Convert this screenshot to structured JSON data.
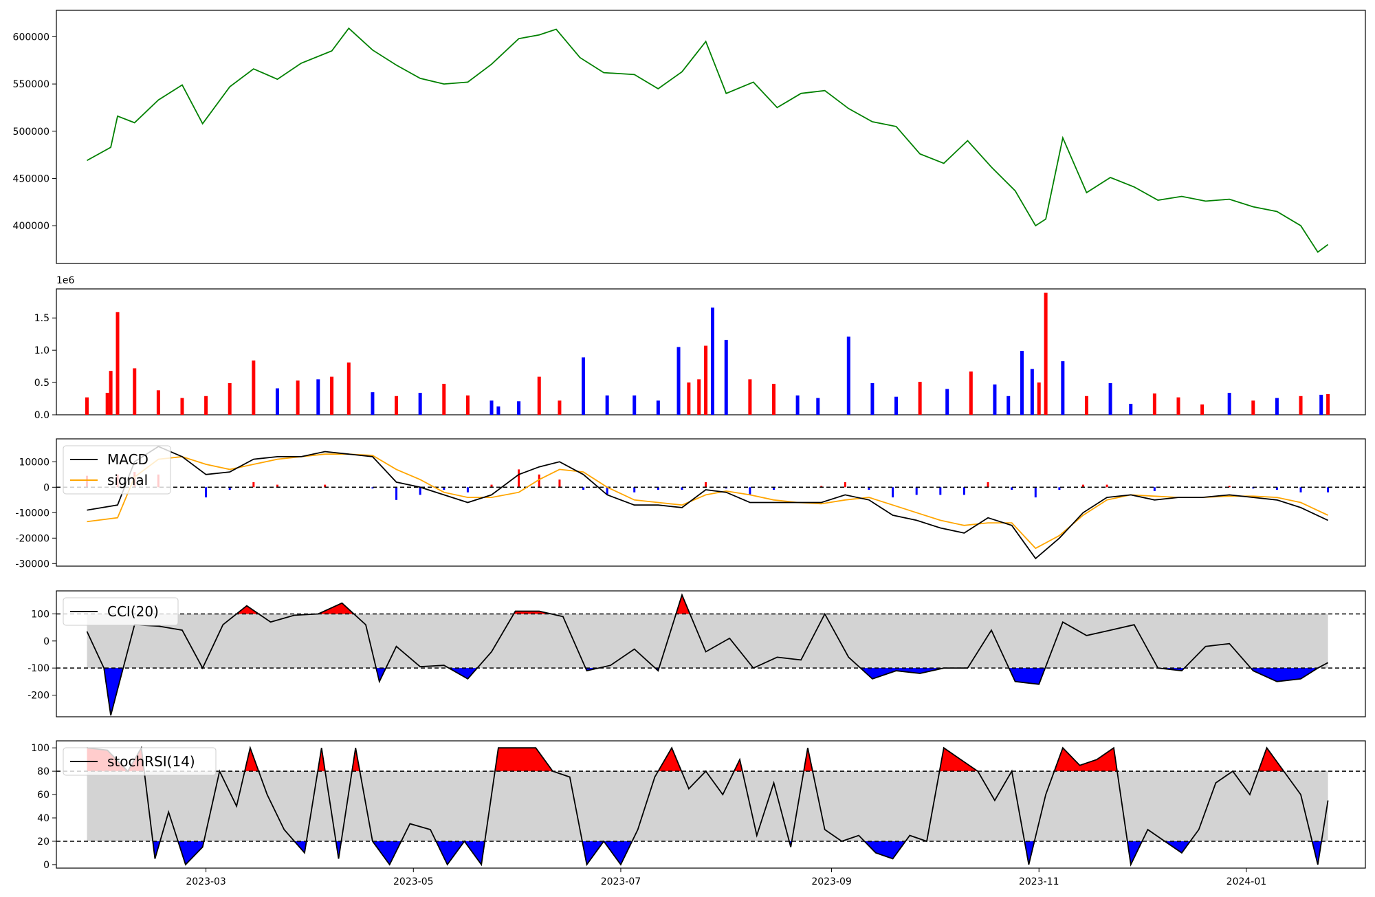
{
  "chart_data": [
    {
      "type": "line",
      "panel": "price",
      "title": "",
      "ylim": [
        360000,
        628000
      ],
      "yticks": [
        400000,
        450000,
        500000,
        550000,
        600000
      ],
      "colors": {
        "line": "#008000"
      },
      "x": [
        "2023-01-25",
        "2023-02-01",
        "2023-02-03",
        "2023-02-08",
        "2023-02-15",
        "2023-02-22",
        "2023-02-28",
        "2023-03-08",
        "2023-03-15",
        "2023-03-22",
        "2023-03-29",
        "2023-04-07",
        "2023-04-12",
        "2023-04-19",
        "2023-04-26",
        "2023-05-03",
        "2023-05-10",
        "2023-05-17",
        "2023-05-24",
        "2023-06-01",
        "2023-06-07",
        "2023-06-12",
        "2023-06-19",
        "2023-06-26",
        "2023-07-05",
        "2023-07-12",
        "2023-07-19",
        "2023-07-26",
        "2023-08-01",
        "2023-08-09",
        "2023-08-16",
        "2023-08-23",
        "2023-08-30",
        "2023-09-06",
        "2023-09-13",
        "2023-09-20",
        "2023-09-27",
        "2023-10-04",
        "2023-10-11",
        "2023-10-18",
        "2023-10-25",
        "2023-10-31",
        "2023-11-03",
        "2023-11-08",
        "2023-11-15",
        "2023-11-22",
        "2023-11-29",
        "2023-12-06",
        "2023-12-13",
        "2023-12-20",
        "2023-12-27",
        "2024-01-03",
        "2024-01-10",
        "2024-01-17",
        "2024-01-22",
        "2024-01-25"
      ],
      "values": [
        469000,
        483000,
        516000,
        509000,
        533000,
        549000,
        508000,
        547000,
        566000,
        555000,
        572000,
        585000,
        609000,
        586000,
        570000,
        556000,
        550000,
        552000,
        571000,
        598000,
        602000,
        608000,
        578000,
        562000,
        560000,
        545000,
        563000,
        595000,
        540000,
        552000,
        525000,
        540000,
        543000,
        524000,
        510000,
        505000,
        476000,
        466000,
        490000,
        462000,
        437000,
        400000,
        407000,
        493000,
        435000,
        451000,
        441000,
        427000,
        431000,
        426000,
        428000,
        420000,
        415000,
        400000,
        372000,
        380000
      ]
    },
    {
      "type": "bar",
      "panel": "volume",
      "scale_label": "1e6",
      "ylim": [
        0,
        1.95
      ],
      "yticks": [
        0.0,
        0.5,
        1.0,
        1.5
      ],
      "colors": {
        "up": "#ff0000",
        "down": "#0000ff"
      },
      "x": [
        "2023-01-25",
        "2023-01-31",
        "2023-02-01",
        "2023-02-03",
        "2023-02-08",
        "2023-02-15",
        "2023-02-22",
        "2023-03-01",
        "2023-03-08",
        "2023-03-15",
        "2023-03-22",
        "2023-03-28",
        "2023-04-03",
        "2023-04-07",
        "2023-04-12",
        "2023-04-19",
        "2023-04-26",
        "2023-05-03",
        "2023-05-10",
        "2023-05-17",
        "2023-05-24",
        "2023-05-26",
        "2023-06-01",
        "2023-06-07",
        "2023-06-13",
        "2023-06-20",
        "2023-06-27",
        "2023-07-05",
        "2023-07-12",
        "2023-07-18",
        "2023-07-21",
        "2023-07-24",
        "2023-07-26",
        "2023-07-28",
        "2023-08-01",
        "2023-08-08",
        "2023-08-15",
        "2023-08-22",
        "2023-08-28",
        "2023-09-06",
        "2023-09-13",
        "2023-09-20",
        "2023-09-27",
        "2023-10-05",
        "2023-10-12",
        "2023-10-19",
        "2023-10-23",
        "2023-10-27",
        "2023-10-30",
        "2023-11-01",
        "2023-11-03",
        "2023-11-08",
        "2023-11-15",
        "2023-11-22",
        "2023-11-28",
        "2023-12-05",
        "2023-12-12",
        "2023-12-19",
        "2023-12-27",
        "2024-01-03",
        "2024-01-10",
        "2024-01-17",
        "2024-01-23",
        "2024-01-25"
      ],
      "values": [
        0.27,
        0.34,
        0.68,
        1.59,
        0.72,
        0.38,
        0.26,
        0.29,
        0.49,
        0.84,
        0.41,
        0.53,
        0.55,
        0.59,
        0.81,
        0.35,
        0.29,
        0.34,
        0.48,
        0.3,
        0.22,
        0.13,
        0.21,
        0.59,
        0.22,
        0.89,
        0.3,
        0.3,
        0.22,
        1.05,
        0.5,
        0.55,
        1.07,
        1.66,
        1.16,
        0.55,
        0.48,
        0.3,
        0.26,
        1.21,
        0.49,
        0.28,
        0.51,
        0.4,
        0.67,
        0.47,
        0.29,
        0.99,
        0.71,
        0.5,
        1.89,
        0.83,
        0.29,
        0.49,
        0.17,
        0.33,
        0.27,
        0.16,
        0.34,
        0.22,
        0.26,
        0.29,
        0.31,
        0.32
      ],
      "up": [
        true,
        true,
        true,
        true,
        true,
        true,
        true,
        true,
        true,
        true,
        false,
        true,
        false,
        true,
        true,
        false,
        true,
        false,
        true,
        true,
        false,
        false,
        false,
        true,
        true,
        false,
        false,
        false,
        false,
        false,
        true,
        true,
        true,
        false,
        false,
        true,
        true,
        false,
        false,
        false,
        false,
        false,
        true,
        false,
        true,
        false,
        false,
        false,
        false,
        true,
        true,
        false,
        true,
        false,
        false,
        true,
        true,
        true,
        false,
        true,
        false,
        true,
        false,
        true
      ]
    },
    {
      "type": "line",
      "panel": "macd",
      "ylim": [
        -31000,
        19000
      ],
      "yticks": [
        -30000,
        -20000,
        -10000,
        0,
        10000
      ],
      "legend": {
        "loc": "upper-left",
        "entries": [
          "MACD",
          "signal"
        ]
      },
      "colors": {
        "macd": "#000000",
        "signal": "#ffa500",
        "hist_pos": "#ff0000",
        "hist_neg": "#0000ff",
        "zero": "#000000"
      },
      "x": [
        "2023-01-25",
        "2023-02-03",
        "2023-02-08",
        "2023-02-15",
        "2023-02-22",
        "2023-03-01",
        "2023-03-08",
        "2023-03-15",
        "2023-03-22",
        "2023-03-29",
        "2023-04-05",
        "2023-04-12",
        "2023-04-19",
        "2023-04-26",
        "2023-05-03",
        "2023-05-10",
        "2023-05-17",
        "2023-05-24",
        "2023-06-01",
        "2023-06-07",
        "2023-06-13",
        "2023-06-20",
        "2023-06-27",
        "2023-07-05",
        "2023-07-12",
        "2023-07-19",
        "2023-07-26",
        "2023-08-01",
        "2023-08-08",
        "2023-08-15",
        "2023-08-22",
        "2023-08-29",
        "2023-09-05",
        "2023-09-12",
        "2023-09-19",
        "2023-09-26",
        "2023-10-03",
        "2023-10-10",
        "2023-10-17",
        "2023-10-24",
        "2023-10-31",
        "2023-11-07",
        "2023-11-14",
        "2023-11-21",
        "2023-11-28",
        "2023-12-05",
        "2023-12-12",
        "2023-12-19",
        "2023-12-27",
        "2024-01-03",
        "2024-01-10",
        "2024-01-17",
        "2024-01-25"
      ],
      "macd": [
        -9000,
        -7000,
        10000,
        16000,
        12000,
        5000,
        6000,
        11000,
        12000,
        12000,
        14000,
        13000,
        12000,
        2000,
        0,
        -3000,
        -6000,
        -3000,
        5000,
        8000,
        10000,
        5000,
        -3000,
        -7000,
        -7000,
        -8000,
        -1000,
        -2000,
        -6000,
        -6000,
        -6000,
        -6000,
        -3000,
        -5000,
        -11000,
        -13000,
        -16000,
        -18000,
        -12000,
        -15000,
        -28000,
        -20000,
        -10000,
        -4000,
        -3000,
        -5000,
        -4000,
        -4000,
        -3000,
        -4000,
        -5000,
        -8000,
        -13000
      ],
      "signal": [
        -13500,
        -12000,
        4000,
        11000,
        12000,
        9000,
        7000,
        9000,
        11000,
        12000,
        13000,
        13000,
        12500,
        7000,
        3000,
        -2000,
        -4000,
        -4000,
        -2000,
        3000,
        7000,
        6000,
        0,
        -5000,
        -6000,
        -7000,
        -3000,
        -1500,
        -3000,
        -5000,
        -6000,
        -6500,
        -5000,
        -4000,
        -7000,
        -10000,
        -13000,
        -15000,
        -14000,
        -14000,
        -24000,
        -19000,
        -11000,
        -5000,
        -3000,
        -3500,
        -4000,
        -4000,
        -3500,
        -3500,
        -4000,
        -6000,
        -11000
      ]
    },
    {
      "type": "line",
      "panel": "cci",
      "ylim": [
        -280,
        185
      ],
      "yticks": [
        -200,
        -100,
        0,
        100
      ],
      "thresholds": [
        100,
        -100
      ],
      "legend": {
        "loc": "upper-left",
        "entries": [
          "CCI(20)"
        ]
      },
      "colors": {
        "line": "#000000",
        "above": "#ff0000",
        "below": "#0000ff",
        "band": "#d3d3d3"
      },
      "x": [
        "2023-01-25",
        "2023-01-30",
        "2023-02-01",
        "2023-02-08",
        "2023-02-15",
        "2023-02-22",
        "2023-02-28",
        "2023-03-06",
        "2023-03-13",
        "2023-03-20",
        "2023-03-27",
        "2023-04-03",
        "2023-04-10",
        "2023-04-17",
        "2023-04-21",
        "2023-04-26",
        "2023-05-03",
        "2023-05-10",
        "2023-05-17",
        "2023-05-24",
        "2023-05-31",
        "2023-06-07",
        "2023-06-14",
        "2023-06-21",
        "2023-06-28",
        "2023-07-05",
        "2023-07-12",
        "2023-07-19",
        "2023-07-26",
        "2023-08-02",
        "2023-08-09",
        "2023-08-16",
        "2023-08-23",
        "2023-08-30",
        "2023-09-06",
        "2023-09-13",
        "2023-09-20",
        "2023-09-27",
        "2023-10-04",
        "2023-10-11",
        "2023-10-18",
        "2023-10-25",
        "2023-11-01",
        "2023-11-08",
        "2023-11-15",
        "2023-11-22",
        "2023-11-29",
        "2023-12-06",
        "2023-12-13",
        "2023-12-20",
        "2023-12-27",
        "2024-01-03",
        "2024-01-10",
        "2024-01-17",
        "2024-01-22",
        "2024-01-25"
      ],
      "values": [
        35,
        -100,
        -275,
        60,
        55,
        40,
        -100,
        60,
        130,
        70,
        95,
        100,
        140,
        60,
        -150,
        -20,
        -95,
        -90,
        -140,
        -40,
        110,
        110,
        90,
        -110,
        -90,
        -30,
        -110,
        170,
        -40,
        10,
        -100,
        -60,
        -70,
        100,
        -60,
        -140,
        -110,
        -120,
        -100,
        -100,
        40,
        -150,
        -160,
        70,
        20,
        40,
        60,
        -100,
        -110,
        -20,
        -10,
        -110,
        -150,
        -140,
        -100,
        -80
      ]
    },
    {
      "type": "line",
      "panel": "stochrsi",
      "ylim": [
        -3,
        106
      ],
      "yticks": [
        0,
        20,
        40,
        60,
        80,
        100
      ],
      "thresholds": [
        80,
        20
      ],
      "legend": {
        "loc": "upper-left",
        "entries": [
          "stochRSI(14)"
        ]
      },
      "colors": {
        "line": "#000000",
        "above": "#ff0000",
        "below": "#0000ff",
        "band": "#d3d3d3"
      },
      "x": [
        "2023-01-25",
        "2023-01-31",
        "2023-02-06",
        "2023-02-10",
        "2023-02-14",
        "2023-02-18",
        "2023-02-23",
        "2023-02-28",
        "2023-03-05",
        "2023-03-10",
        "2023-03-14",
        "2023-03-19",
        "2023-03-24",
        "2023-03-30",
        "2023-04-04",
        "2023-04-09",
        "2023-04-14",
        "2023-04-19",
        "2023-04-24",
        "2023-04-30",
        "2023-05-06",
        "2023-05-11",
        "2023-05-16",
        "2023-05-21",
        "2023-05-26",
        "2023-06-01",
        "2023-06-06",
        "2023-06-11",
        "2023-06-16",
        "2023-06-21",
        "2023-06-26",
        "2023-07-01",
        "2023-07-06",
        "2023-07-11",
        "2023-07-16",
        "2023-07-21",
        "2023-07-26",
        "2023-07-31",
        "2023-08-05",
        "2023-08-10",
        "2023-08-15",
        "2023-08-20",
        "2023-08-25",
        "2023-08-30",
        "2023-09-04",
        "2023-09-09",
        "2023-09-14",
        "2023-09-19",
        "2023-09-24",
        "2023-09-29",
        "2023-10-04",
        "2023-10-09",
        "2023-10-14",
        "2023-10-19",
        "2023-10-24",
        "2023-10-29",
        "2023-11-03",
        "2023-11-08",
        "2023-11-13",
        "2023-11-18",
        "2023-11-23",
        "2023-11-28",
        "2023-12-03",
        "2023-12-08",
        "2023-12-13",
        "2023-12-18",
        "2023-12-23",
        "2023-12-28",
        "2024-01-02",
        "2024-01-07",
        "2024-01-12",
        "2024-01-17",
        "2024-01-22",
        "2024-01-25"
      ],
      "values": [
        100,
        98,
        80,
        100,
        5,
        45,
        0,
        15,
        80,
        50,
        100,
        60,
        30,
        10,
        100,
        5,
        100,
        20,
        0,
        35,
        30,
        0,
        20,
        0,
        100,
        100,
        100,
        80,
        75,
        0,
        20,
        0,
        30,
        75,
        100,
        65,
        80,
        60,
        90,
        25,
        70,
        15,
        100,
        30,
        20,
        25,
        10,
        5,
        25,
        20,
        100,
        90,
        80,
        55,
        80,
        0,
        60,
        100,
        85,
        90,
        100,
        0,
        30,
        20,
        10,
        30,
        70,
        80,
        60,
        100,
        80,
        60,
        0,
        55
      ]
    }
  ],
  "x_axis": {
    "ticks": [
      "2023-03",
      "2023-05",
      "2023-07",
      "2023-09",
      "2023-11",
      "2024-01"
    ],
    "range": [
      "2023-01-16",
      "2024-02-05"
    ]
  }
}
